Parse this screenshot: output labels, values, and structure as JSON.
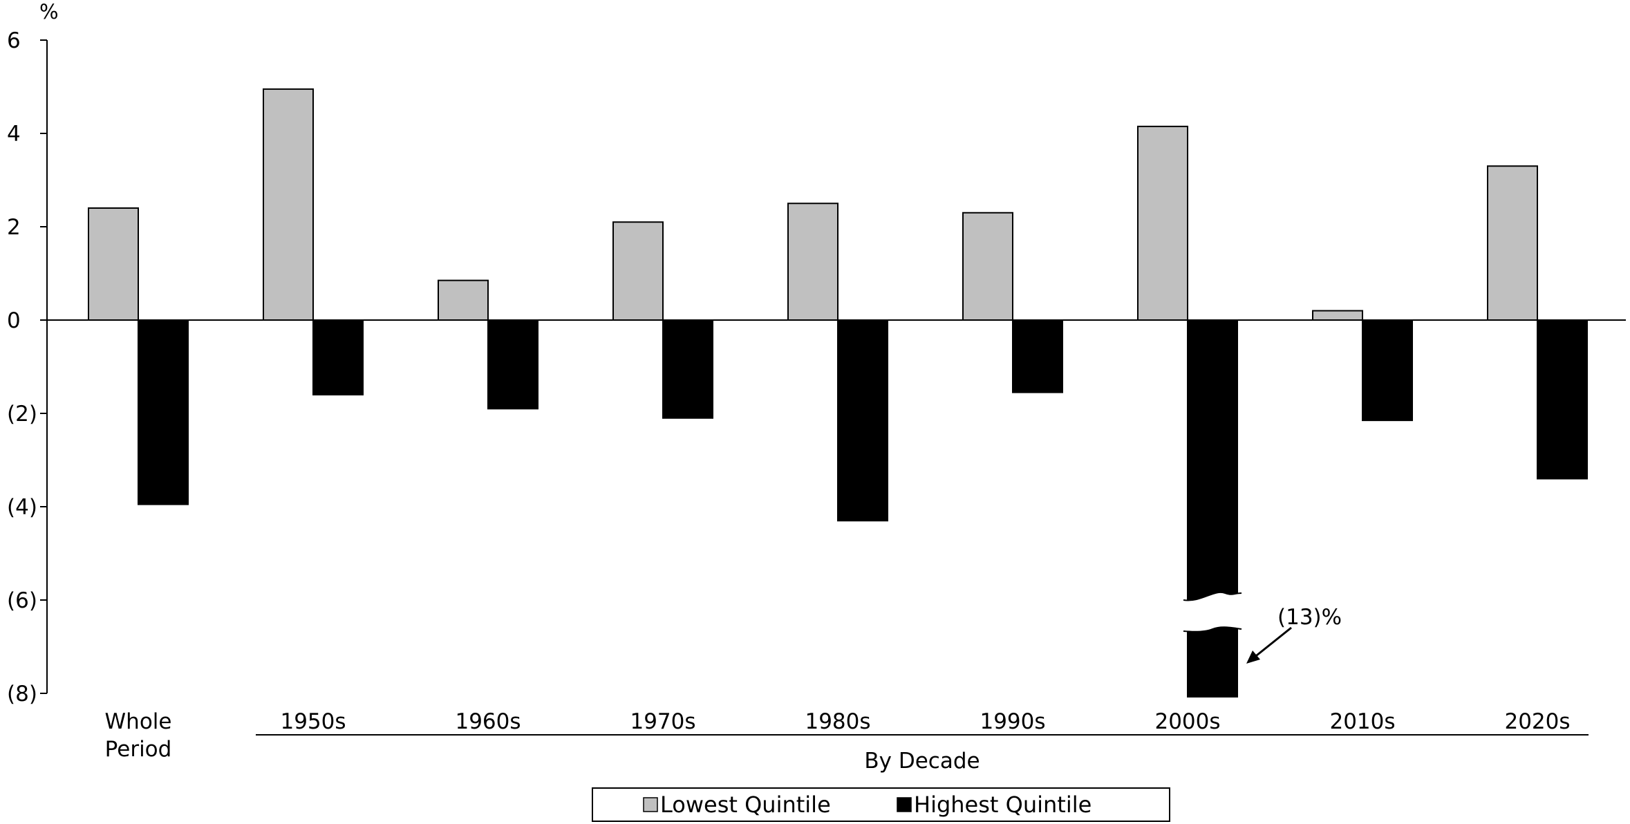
{
  "chart_data": {
    "type": "bar",
    "y_unit_label": "%",
    "categories": [
      "Whole\nPeriod",
      "1950s",
      "1960s",
      "1970s",
      "1980s",
      "1990s",
      "2000s",
      "2010s",
      "2020s"
    ],
    "group_label": "By Decade",
    "series": [
      {
        "name": "Lowest Quintile",
        "color": "#c0c0c0",
        "values": [
          2.4,
          4.95,
          0.85,
          2.1,
          2.5,
          2.3,
          4.15,
          0.2,
          3.3
        ]
      },
      {
        "name": "Highest Quintile",
        "color": "#000000",
        "values": [
          -3.95,
          -1.6,
          -1.9,
          -2.1,
          -4.3,
          -1.55,
          -13,
          -2.15,
          -3.4
        ]
      }
    ],
    "ylim": [
      -8,
      6
    ],
    "yticks": [
      6,
      4,
      2,
      0,
      -2,
      -4,
      -6,
      -8
    ],
    "ytick_labels": [
      "6",
      "4",
      "2",
      "0",
      "(2)",
      "(4)",
      "(6)",
      "(8)"
    ],
    "axis_break": {
      "category": "2000s",
      "series": "Highest Quintile",
      "actual_value": -13
    },
    "annotation": "(13)%",
    "legend_position": "bottom-center",
    "grid": false
  }
}
